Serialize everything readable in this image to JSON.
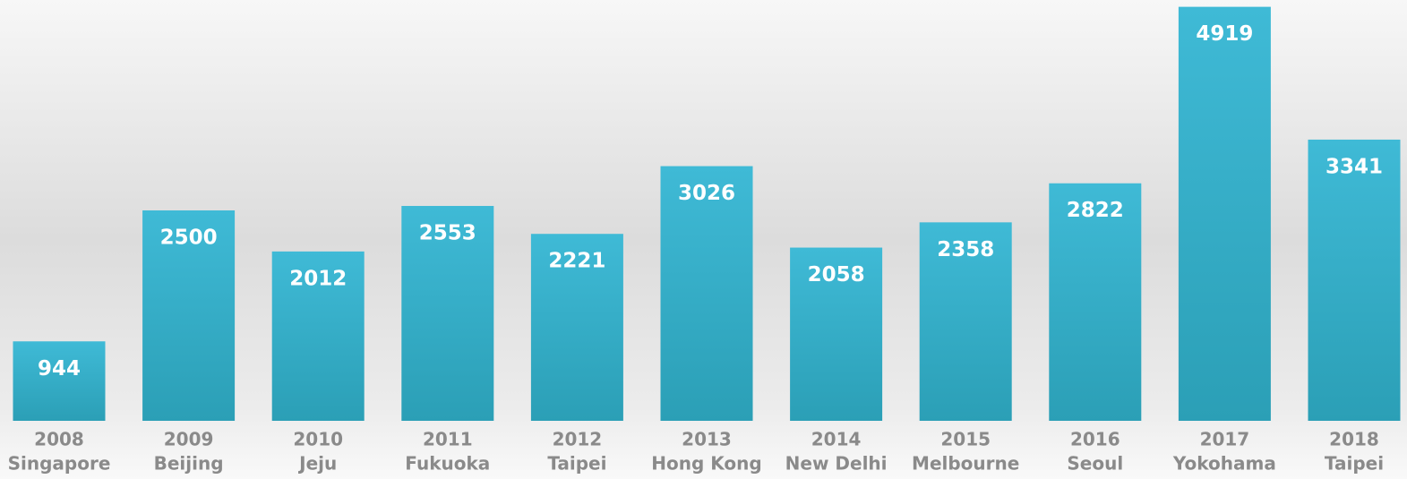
{
  "chart_data": {
    "type": "bar",
    "categories": [
      [
        "2008",
        "Singapore"
      ],
      [
        "2009",
        "Beijing"
      ],
      [
        "2010",
        "Jeju"
      ],
      [
        "2011",
        "Fukuoka"
      ],
      [
        "2012",
        "Taipei"
      ],
      [
        "2013",
        "Hong Kong"
      ],
      [
        "2014",
        "New Delhi"
      ],
      [
        "2015",
        "Melbourne"
      ],
      [
        "2016",
        "Seoul"
      ],
      [
        "2017",
        "Yokohama"
      ],
      [
        "2018",
        "Taipei"
      ]
    ],
    "values": [
      944,
      2500,
      2012,
      2553,
      2221,
      3026,
      2058,
      2358,
      2822,
      4919,
      3341
    ],
    "color": "#36b0c9",
    "ylim": [
      0,
      5000
    ]
  }
}
